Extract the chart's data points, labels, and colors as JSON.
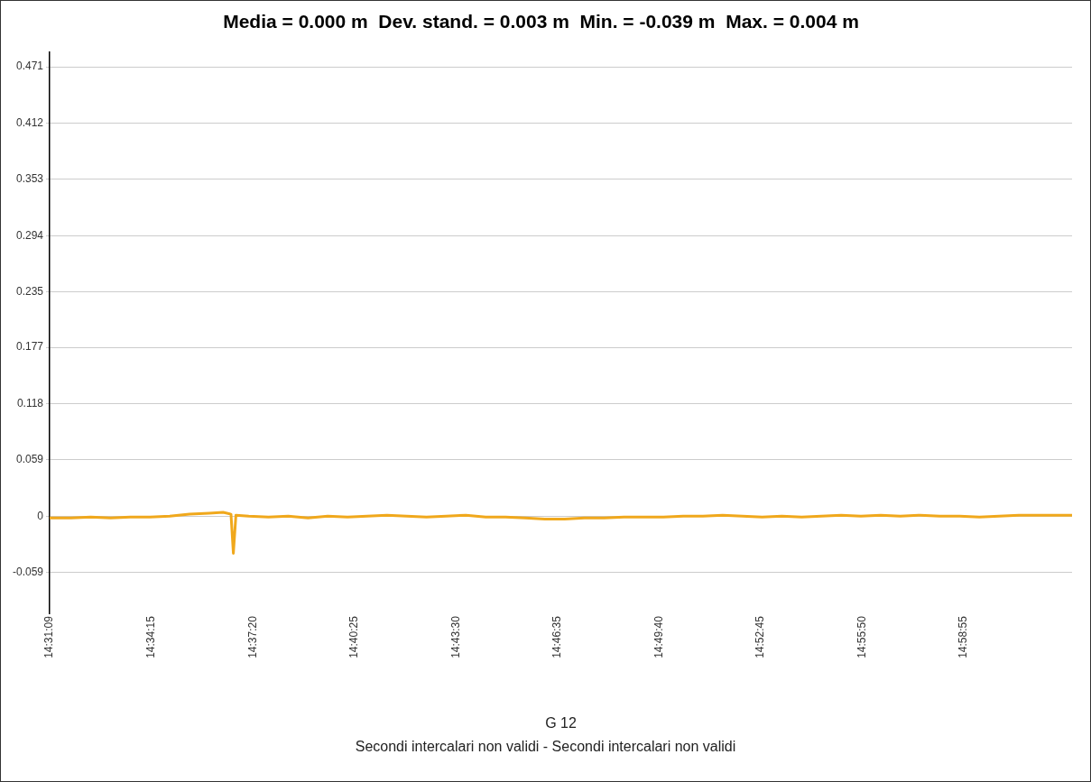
{
  "chart_data": {
    "type": "line",
    "title": "Media = 0.000 m  Dev. stand. = 0.003 m  Min. = -0.039 m  Max. = 0.004 m",
    "xlabel": "G 12",
    "annotations": [
      "Secondi intercalari non validi - Secondi intercalari non validi"
    ],
    "x": [
      14.5192,
      14.53,
      14.54,
      14.55,
      14.56,
      14.57,
      14.58,
      14.59,
      14.6,
      14.607,
      14.611,
      14.6122,
      14.6135,
      14.62,
      14.63,
      14.64,
      14.65,
      14.66,
      14.67,
      14.68,
      14.69,
      14.7,
      14.71,
      14.72,
      14.73,
      14.74,
      14.75,
      14.76,
      14.77,
      14.78,
      14.79,
      14.8,
      14.81,
      14.82,
      14.83,
      14.84,
      14.85,
      14.86,
      14.87,
      14.88,
      14.89,
      14.9,
      14.91,
      14.92,
      14.93,
      14.94,
      14.95,
      14.96,
      14.97,
      14.98,
      14.99,
      15.0,
      15.01,
      15.02,
      15.0369
    ],
    "series": [
      {
        "color": "#f0a81c",
        "values": [
          -0.002,
          -0.002,
          -0.001,
          -0.002,
          -0.001,
          -0.001,
          0.0,
          0.002,
          0.003,
          0.004,
          0.002,
          -0.039,
          0.001,
          0.0,
          -0.001,
          0.0,
          -0.002,
          0.0,
          -0.001,
          0.0,
          0.001,
          0.0,
          -0.001,
          0.0,
          0.001,
          -0.001,
          -0.001,
          -0.002,
          -0.003,
          -0.003,
          -0.002,
          -0.002,
          -0.001,
          -0.001,
          -0.001,
          0.0,
          0.0,
          0.001,
          0.0,
          -0.001,
          0.0,
          -0.001,
          0.0,
          0.001,
          0.0,
          0.001,
          0.0,
          0.001,
          0.0,
          0.0,
          -0.001,
          0.0,
          0.001,
          0.001,
          0.001
        ]
      }
    ],
    "xlim": [
      14.519167,
      15.036944
    ],
    "xticks": [
      {
        "value": 14.519167,
        "label": "14:31:09"
      },
      {
        "value": 14.570833,
        "label": "14:34:15"
      },
      {
        "value": 14.622222,
        "label": "14:37:20"
      },
      {
        "value": 14.673611,
        "label": "14:40:25"
      },
      {
        "value": 14.725,
        "label": "14:43:30"
      },
      {
        "value": 14.776389,
        "label": "14:46:35"
      },
      {
        "value": 14.827778,
        "label": "14:49:40"
      },
      {
        "value": 14.879167,
        "label": "14:52:45"
      },
      {
        "value": 14.930556,
        "label": "14:55:50"
      },
      {
        "value": 14.981944,
        "label": "14:58:55"
      }
    ],
    "ylim": [
      -0.102,
      0.486
    ],
    "yticks": [
      -0.059,
      0,
      0.059,
      0.118,
      0.177,
      0.235,
      0.294,
      0.353,
      0.412,
      0.471
    ],
    "grid": "y",
    "legend": false,
    "marker": "none",
    "line_style": "solid"
  }
}
